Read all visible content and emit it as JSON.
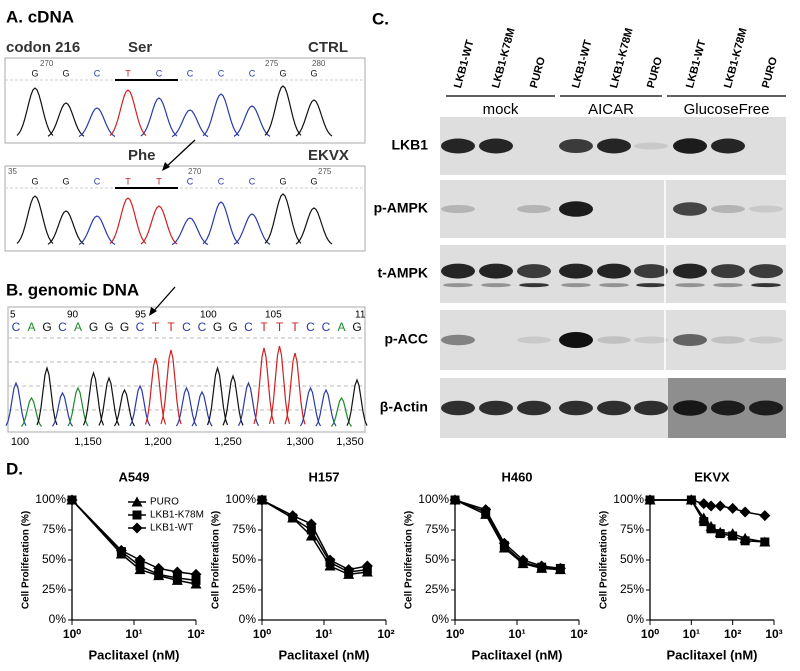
{
  "panel_a": {
    "title": "A. cDNA",
    "top": {
      "left_label": "codon 216",
      "codon_label": "Ser",
      "sample": "CTRL",
      "positions": [
        "270",
        "275",
        "280"
      ],
      "bases": [
        "G",
        "G",
        "C",
        "T",
        "C",
        "C",
        "C",
        "C",
        "G",
        "G"
      ]
    },
    "bottom": {
      "codon_label": "Phe",
      "sample": "EKVX",
      "positions": [
        "35",
        "270",
        "275"
      ],
      "bases": [
        "G",
        "G",
        "C",
        "T",
        "T",
        "C",
        "C",
        "C",
        "G",
        "G"
      ]
    }
  },
  "panel_b": {
    "title": "B. genomic DNA",
    "positions": [
      "5",
      "90",
      "95",
      "100",
      "105",
      "11"
    ],
    "bases": [
      "C",
      "A",
      "G",
      "C",
      "A",
      "G",
      "G",
      "G",
      "C",
      "T",
      "T",
      "C",
      "C",
      "G",
      "G",
      "C",
      "T",
      "T",
      "T",
      "C",
      "C",
      "A",
      "G"
    ],
    "x_labels": [
      "100",
      "1,150",
      "1,200",
      "1,250",
      "1,300",
      "1,350"
    ]
  },
  "panel_c": {
    "title": "C.",
    "lanes": [
      "LKB1-WT",
      "LKB1-K78M",
      "PURO",
      "LKB1-WT",
      "LKB1-K78M",
      "PURO",
      "LKB1-WT",
      "LKB1-K78M",
      "PURO"
    ],
    "groups": [
      "mock",
      "AICAR",
      "GlucoseFree"
    ],
    "rows": [
      "LKB1",
      "p-AMPK",
      "t-AMPK",
      "p-ACC",
      "β-Actin"
    ]
  },
  "panel_d_title": "D.",
  "chart_data": [
    {
      "type": "line",
      "title": "A549",
      "xlabel": "Paclitaxel (nM)",
      "ylabel": "Cell Proliferation (%)",
      "log_x": true,
      "legend": "upper right",
      "x": [
        1,
        6.25,
        12.5,
        25,
        50,
        100
      ],
      "xlim": [
        1,
        100
      ],
      "xticks": [
        {
          "value": 1,
          "label": "10⁰"
        },
        {
          "value": 10,
          "label": "10¹"
        },
        {
          "value": 100,
          "label": "10²"
        }
      ],
      "ylim": [
        0,
        100
      ],
      "yticks": [
        {
          "value": 0,
          "label": "0%"
        },
        {
          "value": 25,
          "label": "25%"
        },
        {
          "value": 50,
          "label": "50%"
        },
        {
          "value": 75,
          "label": "75%"
        },
        {
          "value": 100,
          "label": "100%"
        }
      ],
      "series": [
        {
          "name": "PURO",
          "color": "#000000",
          "marker": "triangle",
          "values": [
            100,
            55,
            42,
            37,
            33,
            30
          ]
        },
        {
          "name": "LKB1-K78M",
          "color": "#000000",
          "marker": "square",
          "values": [
            100,
            57,
            45,
            38,
            35,
            33
          ]
        },
        {
          "name": "LKB1-WT",
          "color": "#000000",
          "marker": "diamond",
          "values": [
            100,
            58,
            50,
            43,
            40,
            38
          ]
        }
      ]
    },
    {
      "type": "line",
      "title": "H157",
      "xlabel": "Paclitaxel (nM)",
      "ylabel": "Cell Proliferation (%)",
      "log_x": true,
      "x": [
        1,
        3.125,
        6.25,
        12.5,
        25,
        50
      ],
      "xlim": [
        1,
        100
      ],
      "xticks": [
        {
          "value": 1,
          "label": "10⁰"
        },
        {
          "value": 10,
          "label": "10¹"
        },
        {
          "value": 100,
          "label": "10²"
        }
      ],
      "ylim": [
        0,
        100
      ],
      "yticks": [
        {
          "value": 0,
          "label": "0%"
        },
        {
          "value": 25,
          "label": "25%"
        },
        {
          "value": 50,
          "label": "50%"
        },
        {
          "value": 75,
          "label": "75%"
        },
        {
          "value": 100,
          "label": "100%"
        }
      ],
      "series": [
        {
          "color": "#000000",
          "marker": "triangle",
          "values": [
            100,
            85,
            70,
            45,
            38,
            40
          ]
        },
        {
          "color": "#000000",
          "marker": "square",
          "values": [
            100,
            85,
            75,
            48,
            40,
            42
          ]
        },
        {
          "color": "#000000",
          "marker": "diamond",
          "values": [
            100,
            87,
            80,
            50,
            42,
            45
          ]
        }
      ]
    },
    {
      "type": "line",
      "title": "H460",
      "xlabel": "Paclitaxel (nM)",
      "ylabel": "Cell Proliferation (%)",
      "log_x": true,
      "x": [
        1,
        3.125,
        6.25,
        12.5,
        25,
        50
      ],
      "xlim": [
        1,
        100
      ],
      "xticks": [
        {
          "value": 1,
          "label": "10⁰"
        },
        {
          "value": 10,
          "label": "10¹"
        },
        {
          "value": 100,
          "label": "10²"
        }
      ],
      "ylim": [
        0,
        100
      ],
      "yticks": [
        {
          "value": 0,
          "label": "0%"
        },
        {
          "value": 25,
          "label": "25%"
        },
        {
          "value": 50,
          "label": "50%"
        },
        {
          "value": 75,
          "label": "75%"
        },
        {
          "value": 100,
          "label": "100%"
        }
      ],
      "series": [
        {
          "color": "#000000",
          "marker": "triangle",
          "values": [
            100,
            88,
            60,
            47,
            43,
            42
          ]
        },
        {
          "color": "#000000",
          "marker": "square",
          "values": [
            100,
            90,
            62,
            48,
            44,
            43
          ]
        },
        {
          "color": "#000000",
          "marker": "diamond",
          "values": [
            100,
            92,
            64,
            50,
            45,
            43
          ]
        }
      ]
    },
    {
      "type": "line",
      "title": "EKVX",
      "xlabel": "Paclitaxel (nM)",
      "ylabel": "Cell Proliferation (%)",
      "log_x": true,
      "x": [
        1,
        10,
        20,
        30,
        50,
        100,
        200,
        600
      ],
      "xlim": [
        1,
        1000
      ],
      "xticks": [
        {
          "value": 1,
          "label": "10⁰"
        },
        {
          "value": 10,
          "label": "10¹"
        },
        {
          "value": 100,
          "label": "10²"
        },
        {
          "value": 1000,
          "label": "10³"
        }
      ],
      "ylim": [
        0,
        100
      ],
      "yticks": [
        {
          "value": 0,
          "label": "0%"
        },
        {
          "value": 25,
          "label": "25%"
        },
        {
          "value": 50,
          "label": "50%"
        },
        {
          "value": 75,
          "label": "75%"
        },
        {
          "value": 100,
          "label": "100%"
        }
      ],
      "series": [
        {
          "color": "#000000",
          "marker": "triangle",
          "values": [
            100,
            100,
            85,
            78,
            73,
            72,
            68,
            65
          ]
        },
        {
          "color": "#000000",
          "marker": "square",
          "values": [
            100,
            100,
            82,
            76,
            72,
            70,
            66,
            65
          ]
        },
        {
          "color": "#000000",
          "marker": "diamond",
          "values": [
            100,
            100,
            97,
            95,
            95,
            93,
            90,
            87
          ]
        }
      ]
    }
  ]
}
